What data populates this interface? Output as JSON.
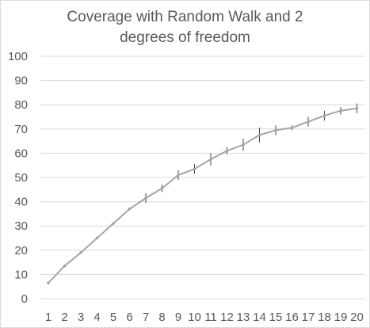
{
  "chart_data": {
    "type": "line",
    "title_lines": [
      "Coverage with Random Walk and 2",
      "degrees of freedom"
    ],
    "xlabel": "",
    "ylabel": "",
    "categories": [
      "1",
      "2",
      "3",
      "4",
      "5",
      "6",
      "7",
      "8",
      "9",
      "10",
      "11",
      "12",
      "13",
      "14",
      "15",
      "16",
      "17",
      "18",
      "19",
      "20"
    ],
    "series": [
      {
        "values": [
          6.5,
          13.5,
          19,
          25,
          31,
          37,
          41.5,
          45.5,
          51,
          53.5,
          57.5,
          61,
          63.5,
          67.5,
          69.5,
          70.5,
          73,
          75.5,
          77.5,
          78.5
        ],
        "error": [
          0.5,
          0.5,
          0.5,
          0.5,
          0.5,
          0.5,
          2,
          1.5,
          2,
          2,
          2.5,
          1.5,
          2.5,
          3,
          2,
          1,
          2,
          2,
          1.5,
          2
        ]
      }
    ],
    "ylim": [
      0,
      100
    ],
    "yticks": [
      0,
      10,
      20,
      30,
      40,
      50,
      60,
      70,
      80,
      90,
      100
    ],
    "grid": true,
    "legend": "none",
    "colors": {
      "line": "#a5a5a5",
      "errorbar": "#404040",
      "grid": "#d9d9d9",
      "text": "#595959"
    }
  }
}
